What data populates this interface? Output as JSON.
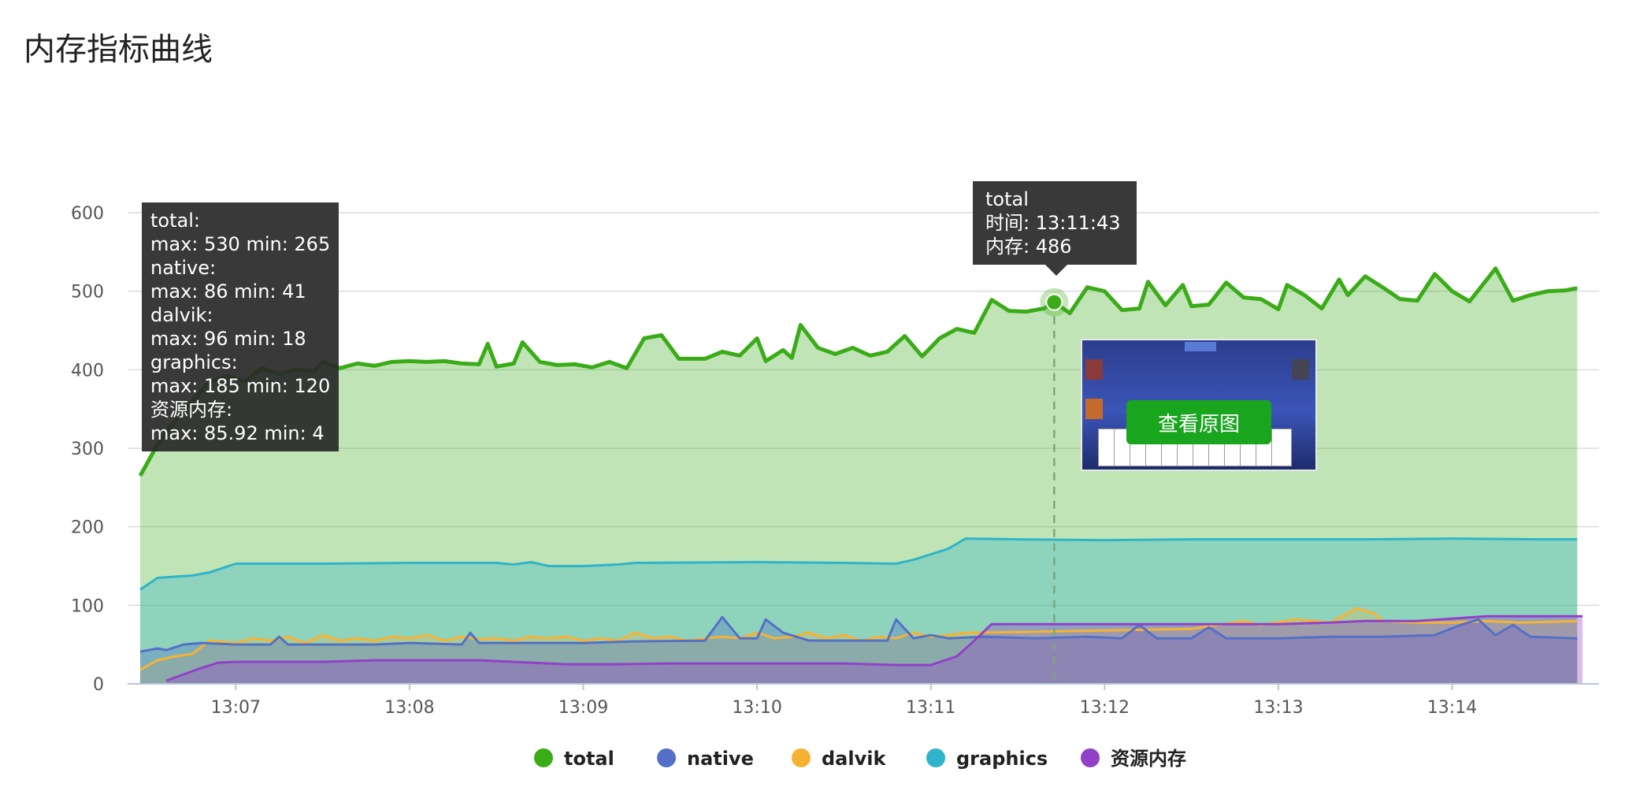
{
  "page": {
    "title": "内存指标曲线"
  },
  "colors": {
    "total": "#3aac18",
    "native": "#5470c6",
    "dalvik": "#f7b233",
    "graphics": "#30b4c9",
    "resource": "#9141c8"
  },
  "tooltip_summary": [
    {
      "name": "total:",
      "stats": "max: 530 min: 265"
    },
    {
      "name": "native:",
      "stats": "max: 86 min: 41"
    },
    {
      "name": "dalvik:",
      "stats": "max: 96 min: 18"
    },
    {
      "name": "graphics:",
      "stats": "max: 185 min: 120"
    },
    {
      "name": "资源内存:",
      "stats": "max: 85.92 min: 4"
    }
  ],
  "tooltip_point": {
    "series": "total",
    "time_label": "时间: ",
    "time": "13:11:43",
    "mem_label": "内存: ",
    "mem": "486"
  },
  "thumbnail": {
    "button_label": "查看原图"
  },
  "chart_data": {
    "type": "area",
    "title": "内存指标曲线",
    "xlabel": "",
    "ylabel": "",
    "x_range_minutes": [
      6.45,
      14.75
    ],
    "ylim": [
      0,
      600
    ],
    "y_ticks": [
      0,
      100,
      200,
      300,
      400,
      500,
      600
    ],
    "x_ticks": [
      7,
      8,
      9,
      10,
      11,
      12,
      13,
      14
    ],
    "x_tick_labels": [
      "13:07",
      "13:08",
      "13:09",
      "13:10",
      "13:11",
      "13:12",
      "13:13",
      "13:14"
    ],
    "highlight_x": 11.71,
    "legend_position": "bottom-center",
    "series": [
      {
        "key": "total",
        "name": "total",
        "points": [
          [
            6.45,
            265
          ],
          [
            6.55,
            305
          ],
          [
            6.65,
            335
          ],
          [
            6.75,
            360
          ],
          [
            6.85,
            385
          ],
          [
            6.95,
            392
          ],
          [
            7.05,
            385
          ],
          [
            7.15,
            402
          ],
          [
            7.25,
            395
          ],
          [
            7.35,
            400
          ],
          [
            7.45,
            398
          ],
          [
            7.5,
            410
          ],
          [
            7.6,
            402
          ],
          [
            7.7,
            408
          ],
          [
            7.8,
            405
          ],
          [
            7.9,
            410
          ],
          [
            8.0,
            411
          ],
          [
            8.1,
            410
          ],
          [
            8.2,
            411
          ],
          [
            8.3,
            408
          ],
          [
            8.4,
            407
          ],
          [
            8.45,
            433
          ],
          [
            8.5,
            404
          ],
          [
            8.6,
            408
          ],
          [
            8.65,
            435
          ],
          [
            8.75,
            410
          ],
          [
            8.85,
            406
          ],
          [
            8.95,
            407
          ],
          [
            9.05,
            403
          ],
          [
            9.15,
            410
          ],
          [
            9.25,
            402
          ],
          [
            9.35,
            440
          ],
          [
            9.45,
            444
          ],
          [
            9.55,
            414
          ],
          [
            9.7,
            414
          ],
          [
            9.8,
            423
          ],
          [
            9.9,
            418
          ],
          [
            10.0,
            440
          ],
          [
            10.05,
            411
          ],
          [
            10.15,
            425
          ],
          [
            10.2,
            415
          ],
          [
            10.25,
            457
          ],
          [
            10.35,
            428
          ],
          [
            10.45,
            420
          ],
          [
            10.55,
            428
          ],
          [
            10.65,
            418
          ],
          [
            10.75,
            423
          ],
          [
            10.85,
            443
          ],
          [
            10.95,
            417
          ],
          [
            11.05,
            440
          ],
          [
            11.15,
            452
          ],
          [
            11.25,
            447
          ],
          [
            11.35,
            489
          ],
          [
            11.45,
            475
          ],
          [
            11.55,
            474
          ],
          [
            11.65,
            478
          ],
          [
            11.71,
            486
          ],
          [
            11.8,
            472
          ],
          [
            11.9,
            505
          ],
          [
            12.0,
            500
          ],
          [
            12.1,
            476
          ],
          [
            12.2,
            478
          ],
          [
            12.25,
            512
          ],
          [
            12.35,
            482
          ],
          [
            12.45,
            508
          ],
          [
            12.5,
            481
          ],
          [
            12.6,
            483
          ],
          [
            12.7,
            511
          ],
          [
            12.8,
            492
          ],
          [
            12.9,
            490
          ],
          [
            13.0,
            477
          ],
          [
            13.05,
            508
          ],
          [
            13.15,
            495
          ],
          [
            13.25,
            478
          ],
          [
            13.35,
            515
          ],
          [
            13.4,
            495
          ],
          [
            13.5,
            519
          ],
          [
            13.6,
            505
          ],
          [
            13.7,
            490
          ],
          [
            13.8,
            488
          ],
          [
            13.9,
            522
          ],
          [
            14.0,
            500
          ],
          [
            14.1,
            487
          ],
          [
            14.25,
            529
          ],
          [
            14.35,
            488
          ],
          [
            14.45,
            495
          ],
          [
            14.55,
            500
          ],
          [
            14.65,
            501
          ],
          [
            14.72,
            504
          ]
        ]
      },
      {
        "key": "graphics",
        "name": "graphics",
        "points": [
          [
            6.45,
            120
          ],
          [
            6.55,
            135
          ],
          [
            6.75,
            138
          ],
          [
            6.85,
            142
          ],
          [
            7.0,
            153
          ],
          [
            7.5,
            153
          ],
          [
            8.0,
            154
          ],
          [
            8.5,
            154
          ],
          [
            8.6,
            152
          ],
          [
            8.7,
            155
          ],
          [
            8.8,
            150
          ],
          [
            9.0,
            150
          ],
          [
            9.2,
            152
          ],
          [
            9.3,
            154
          ],
          [
            10.0,
            155
          ],
          [
            10.5,
            154
          ],
          [
            10.8,
            153
          ],
          [
            10.9,
            158
          ],
          [
            11.0,
            165
          ],
          [
            11.1,
            172
          ],
          [
            11.2,
            185
          ],
          [
            11.5,
            184
          ],
          [
            12.0,
            183
          ],
          [
            12.5,
            184
          ],
          [
            13.0,
            184
          ],
          [
            13.5,
            184
          ],
          [
            14.0,
            185
          ],
          [
            14.5,
            184
          ],
          [
            14.72,
            184
          ]
        ]
      },
      {
        "key": "dalvik",
        "name": "dalvik",
        "points": [
          [
            6.45,
            18
          ],
          [
            6.55,
            30
          ],
          [
            6.65,
            35
          ],
          [
            6.75,
            38
          ],
          [
            6.85,
            55
          ],
          [
            7.0,
            52
          ],
          [
            7.1,
            58
          ],
          [
            7.2,
            55
          ],
          [
            7.3,
            60
          ],
          [
            7.4,
            52
          ],
          [
            7.5,
            62
          ],
          [
            7.6,
            55
          ],
          [
            7.7,
            58
          ],
          [
            7.8,
            55
          ],
          [
            7.9,
            60
          ],
          [
            8.0,
            58
          ],
          [
            8.1,
            62
          ],
          [
            8.2,
            55
          ],
          [
            8.3,
            60
          ],
          [
            8.4,
            57
          ],
          [
            8.5,
            58
          ],
          [
            8.6,
            55
          ],
          [
            8.7,
            60
          ],
          [
            8.8,
            58
          ],
          [
            8.9,
            60
          ],
          [
            9.0,
            55
          ],
          [
            9.1,
            58
          ],
          [
            9.2,
            55
          ],
          [
            9.3,
            65
          ],
          [
            9.4,
            58
          ],
          [
            9.5,
            60
          ],
          [
            9.6,
            55
          ],
          [
            9.7,
            58
          ],
          [
            9.8,
            60
          ],
          [
            9.9,
            58
          ],
          [
            10.0,
            65
          ],
          [
            10.1,
            58
          ],
          [
            10.2,
            60
          ],
          [
            10.3,
            65
          ],
          [
            10.4,
            58
          ],
          [
            10.5,
            62
          ],
          [
            10.6,
            55
          ],
          [
            10.7,
            60
          ],
          [
            10.8,
            58
          ],
          [
            10.9,
            65
          ],
          [
            11.0,
            60
          ],
          [
            11.1,
            62
          ],
          [
            11.2,
            65
          ],
          [
            11.5,
            66
          ],
          [
            12.0,
            68
          ],
          [
            12.5,
            70
          ],
          [
            12.8,
            80
          ],
          [
            12.9,
            75
          ],
          [
            13.1,
            82
          ],
          [
            13.3,
            78
          ],
          [
            13.45,
            96
          ],
          [
            13.55,
            90
          ],
          [
            13.6,
            80
          ],
          [
            13.8,
            78
          ],
          [
            14.0,
            78
          ],
          [
            14.2,
            80
          ],
          [
            14.4,
            78
          ],
          [
            14.72,
            80
          ]
        ]
      },
      {
        "key": "native",
        "name": "native",
        "points": [
          [
            6.45,
            41
          ],
          [
            6.55,
            45
          ],
          [
            6.6,
            43
          ],
          [
            6.7,
            50
          ],
          [
            6.8,
            52
          ],
          [
            7.0,
            50
          ],
          [
            7.2,
            50
          ],
          [
            7.25,
            60
          ],
          [
            7.3,
            50
          ],
          [
            7.5,
            50
          ],
          [
            7.8,
            50
          ],
          [
            8.0,
            52
          ],
          [
            8.3,
            50
          ],
          [
            8.35,
            65
          ],
          [
            8.4,
            52
          ],
          [
            8.7,
            52
          ],
          [
            9.0,
            52
          ],
          [
            9.3,
            54
          ],
          [
            9.7,
            55
          ],
          [
            9.8,
            85
          ],
          [
            9.9,
            58
          ],
          [
            10.0,
            58
          ],
          [
            10.05,
            82
          ],
          [
            10.15,
            65
          ],
          [
            10.3,
            55
          ],
          [
            10.6,
            55
          ],
          [
            10.75,
            55
          ],
          [
            10.8,
            82
          ],
          [
            10.9,
            58
          ],
          [
            11.0,
            62
          ],
          [
            11.1,
            58
          ],
          [
            11.3,
            60
          ],
          [
            11.6,
            58
          ],
          [
            11.9,
            60
          ],
          [
            12.1,
            58
          ],
          [
            12.2,
            75
          ],
          [
            12.3,
            58
          ],
          [
            12.5,
            58
          ],
          [
            12.6,
            72
          ],
          [
            12.7,
            58
          ],
          [
            13.0,
            58
          ],
          [
            13.3,
            60
          ],
          [
            13.6,
            60
          ],
          [
            13.9,
            62
          ],
          [
            14.05,
            75
          ],
          [
            14.15,
            82
          ],
          [
            14.25,
            62
          ],
          [
            14.35,
            75
          ],
          [
            14.45,
            60
          ],
          [
            14.72,
            58
          ]
        ]
      },
      {
        "key": "resource",
        "name": "资源内存",
        "points": [
          [
            6.6,
            4
          ],
          [
            6.65,
            8
          ],
          [
            6.8,
            20
          ],
          [
            6.9,
            27
          ],
          [
            7.0,
            28
          ],
          [
            7.5,
            28
          ],
          [
            7.8,
            30
          ],
          [
            8.0,
            30
          ],
          [
            8.4,
            30
          ],
          [
            8.6,
            28
          ],
          [
            8.9,
            25
          ],
          [
            9.2,
            25
          ],
          [
            9.5,
            26
          ],
          [
            9.8,
            26
          ],
          [
            10.2,
            26
          ],
          [
            10.5,
            26
          ],
          [
            10.8,
            24
          ],
          [
            11.0,
            24
          ],
          [
            11.15,
            35
          ],
          [
            11.25,
            55
          ],
          [
            11.35,
            76
          ],
          [
            11.7,
            76
          ],
          [
            12.0,
            76
          ],
          [
            12.5,
            76
          ],
          [
            13.0,
            76
          ],
          [
            13.3,
            78
          ],
          [
            13.5,
            80
          ],
          [
            13.8,
            80
          ],
          [
            14.0,
            83
          ],
          [
            14.2,
            86
          ],
          [
            14.5,
            86
          ],
          [
            14.75,
            86
          ]
        ]
      }
    ],
    "legend": [
      {
        "key": "total",
        "label": "total"
      },
      {
        "key": "native",
        "label": "native"
      },
      {
        "key": "dalvik",
        "label": "dalvik"
      },
      {
        "key": "graphics",
        "label": "graphics"
      },
      {
        "key": "resource",
        "label": "资源内存"
      }
    ]
  }
}
